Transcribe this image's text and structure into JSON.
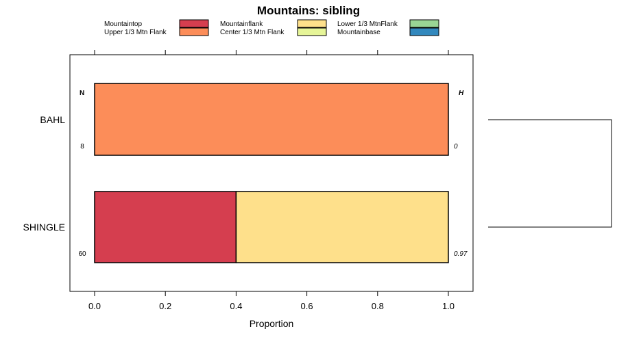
{
  "chart_data": {
    "type": "bar",
    "orientation": "horizontal",
    "stacked": true,
    "title": "Mountains: sibling",
    "xlabel": "Proportion",
    "ylabel": "",
    "xlim": [
      -0.07,
      1.07
    ],
    "xticks": [
      0.0,
      0.2,
      0.4,
      0.6,
      0.8,
      1.0
    ],
    "xtick_labels": [
      "0.0",
      "0.2",
      "0.4",
      "0.6",
      "0.8",
      "1.0"
    ],
    "legend": {
      "placement": "top",
      "entries": [
        {
          "label": "Mountaintop",
          "color": "#d53e4f"
        },
        {
          "label": "Upper 1/3 Mtn Flank",
          "color": "#fc8d59"
        },
        {
          "label": "Mountainflank",
          "color": "#fee08b"
        },
        {
          "label": "Center 1/3 Mtn Flank",
          "color": "#e6f598"
        },
        {
          "label": "Lower 1/3 MtnFlank",
          "color": "#99d594"
        },
        {
          "label": "Mountainbase",
          "color": "#3288bd"
        }
      ]
    },
    "categories": [
      "BAHL",
      "SHINGLE"
    ],
    "series": [
      {
        "name": "Mountaintop",
        "values": [
          0.0,
          0.4
        ]
      },
      {
        "name": "Upper 1/3 Mtn Flank",
        "values": [
          1.0,
          0.0
        ]
      },
      {
        "name": "Mountainflank",
        "values": [
          0.0,
          0.6
        ]
      },
      {
        "name": "Center 1/3 Mtn Flank",
        "values": [
          0.0,
          0.0
        ]
      },
      {
        "name": "Lower 1/3 MtnFlank",
        "values": [
          0.0,
          0.0
        ]
      },
      {
        "name": "Mountainbase",
        "values": [
          0.0,
          0.0
        ]
      }
    ],
    "n_header": "N",
    "h_header": "H",
    "n_values": [
      "8",
      "60"
    ],
    "h_values": [
      "0",
      "0.97"
    ],
    "dendrogram": true
  }
}
